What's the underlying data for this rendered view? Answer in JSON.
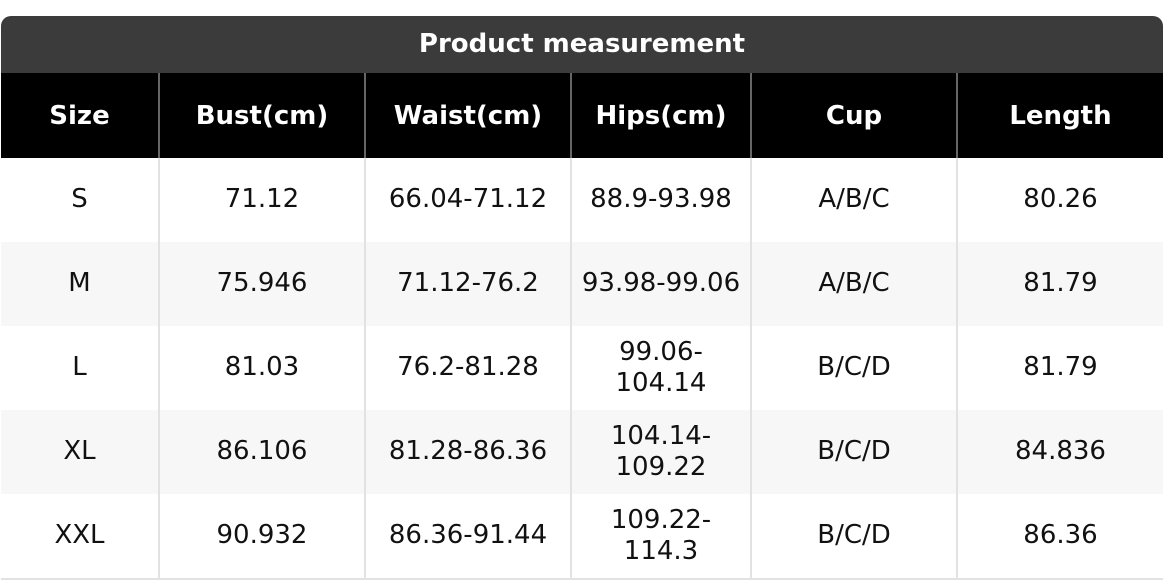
{
  "title": "Product measurement",
  "table": {
    "columns": [
      "Size",
      "Bust(cm)",
      "Waist(cm)",
      "Hips(cm)",
      "Cup",
      "Length"
    ],
    "rows": [
      [
        "S",
        "71.12",
        "66.04-71.12",
        "88.9-93.98",
        "A/B/C",
        "80.26"
      ],
      [
        "M",
        "75.946",
        "71.12-76.2",
        "93.98-99.06",
        "A/B/C",
        "81.79"
      ],
      [
        "L",
        "81.03",
        "76.2-81.28",
        "99.06-104.14",
        "B/C/D",
        "81.79"
      ],
      [
        "XL",
        "86.106",
        "81.28-86.36",
        "104.14-109.22",
        "B/C/D",
        "84.836"
      ],
      [
        "XXL",
        "90.932",
        "86.36-91.44",
        "109.22-114.3",
        "B/C/D",
        "86.36"
      ]
    ]
  }
}
